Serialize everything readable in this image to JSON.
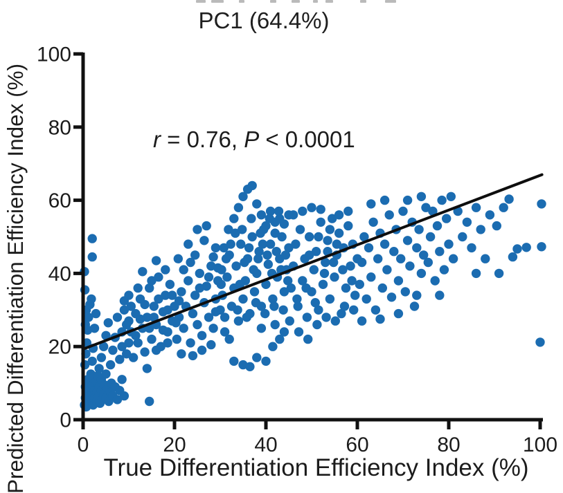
{
  "annotation": {
    "var1": "r",
    "mid": " = 0.76, ",
    "var2": "P",
    "end": " < 0.0001"
  },
  "chart_data": {
    "type": "scatter",
    "title": "PC1 (64.4%)",
    "xlabel": "True Differentiation Efficiency Index (%)",
    "ylabel": "Predicted Differentiation Efficiency Index (%)",
    "annotation_text": "r = 0.76, P < 0.0001",
    "xlim": [
      0,
      100
    ],
    "ylim": [
      0,
      100
    ],
    "xticks": [
      0,
      20,
      40,
      60,
      80,
      100
    ],
    "yticks": [
      0,
      20,
      40,
      60,
      80,
      100
    ],
    "grid": false,
    "legend": false,
    "point_color": "#1b6cb1",
    "axis_color": "#111111",
    "trend_line_color": "#0e0e0e",
    "trend_line": {
      "x1": 0,
      "y1": 19.3,
      "x2": 100.4,
      "y2": 67
    },
    "points": [
      [
        0.3,
        4
      ],
      [
        0.5,
        6
      ],
      [
        0.5,
        9
      ],
      [
        0.7,
        3.5
      ],
      [
        0.8,
        7.5
      ],
      [
        1,
        5
      ],
      [
        1,
        11
      ],
      [
        1.2,
        8.5
      ],
      [
        1.3,
        4.5
      ],
      [
        1.5,
        6.5
      ],
      [
        1.5,
        10
      ],
      [
        1.7,
        12.5
      ],
      [
        1.8,
        5.5
      ],
      [
        2,
        7
      ],
      [
        2,
        9.5
      ],
      [
        2.2,
        4
      ],
      [
        2.3,
        11.5
      ],
      [
        2.5,
        6
      ],
      [
        2.5,
        8
      ],
      [
        2.8,
        10.5
      ],
      [
        3,
        5
      ],
      [
        3,
        7.5
      ],
      [
        3.2,
        12
      ],
      [
        3.4,
        6.5
      ],
      [
        3.5,
        9
      ],
      [
        3.7,
        4.5
      ],
      [
        4,
        8
      ],
      [
        4,
        11
      ],
      [
        4.2,
        5.5
      ],
      [
        4.5,
        7
      ],
      [
        4.7,
        9.5
      ],
      [
        5,
        6
      ],
      [
        5,
        12.5
      ],
      [
        5.3,
        8.5
      ],
      [
        5.6,
        5
      ],
      [
        6,
        7.5
      ],
      [
        6.2,
        10
      ],
      [
        6.5,
        6.5
      ],
      [
        7,
        9
      ],
      [
        7.5,
        5.5
      ],
      [
        8,
        8
      ],
      [
        8.5,
        11
      ],
      [
        9,
        6.5
      ],
      [
        0.4,
        15
      ],
      [
        0.6,
        18
      ],
      [
        0.8,
        21
      ],
      [
        1,
        24.5
      ],
      [
        0.5,
        26
      ],
      [
        1.2,
        28
      ],
      [
        0.7,
        30
      ],
      [
        1.5,
        31.5
      ],
      [
        2,
        16
      ],
      [
        2.2,
        19.5
      ],
      [
        2.5,
        25
      ],
      [
        2.8,
        29
      ],
      [
        1.8,
        33
      ],
      [
        0.4,
        35.5
      ],
      [
        0.3,
        40.5
      ],
      [
        2,
        44.5
      ],
      [
        2,
        49.5
      ],
      [
        3.5,
        14
      ],
      [
        4,
        17
      ],
      [
        4.5,
        20
      ],
      [
        5,
        23
      ],
      [
        5.5,
        26.5
      ],
      [
        6,
        15
      ],
      [
        6.5,
        19
      ],
      [
        7,
        22.5
      ],
      [
        7.5,
        28
      ],
      [
        8,
        16.5
      ],
      [
        8.5,
        24
      ],
      [
        9,
        30
      ],
      [
        9.5,
        18
      ],
      [
        10,
        21
      ],
      [
        10,
        27
      ],
      [
        9,
        32.5
      ],
      [
        14.5,
        5
      ],
      [
        14,
        14
      ],
      [
        10.5,
        24
      ],
      [
        11,
        17
      ],
      [
        11.5,
        29
      ],
      [
        12,
        21
      ],
      [
        12.5,
        33
      ],
      [
        13,
        25
      ],
      [
        13.5,
        18.5
      ],
      [
        14,
        28
      ],
      [
        14.5,
        36
      ],
      [
        15,
        22
      ],
      [
        15.5,
        31
      ],
      [
        16,
        26
      ],
      [
        16.5,
        39
      ],
      [
        17,
        20
      ],
      [
        17.5,
        29.5
      ],
      [
        18,
        34
      ],
      [
        18.5,
        24
      ],
      [
        19,
        37
      ],
      [
        19.5,
        27
      ],
      [
        20,
        31
      ],
      [
        13,
        40.5
      ],
      [
        16,
        43.5
      ],
      [
        8.5,
        20
      ],
      [
        9.5,
        26
      ],
      [
        10.5,
        31
      ],
      [
        11.5,
        23
      ],
      [
        12.5,
        27.5
      ],
      [
        13.5,
        31.5
      ],
      [
        14.5,
        25
      ],
      [
        15.5,
        28
      ],
      [
        16.5,
        33
      ],
      [
        17.5,
        24.5
      ],
      [
        18.5,
        30
      ],
      [
        19.5,
        34
      ],
      [
        12,
        36
      ],
      [
        15,
        38
      ],
      [
        18,
        41
      ],
      [
        10,
        34
      ],
      [
        16,
        19
      ],
      [
        18.5,
        21
      ],
      [
        20.5,
        22
      ],
      [
        21,
        28
      ],
      [
        21.5,
        35
      ],
      [
        22,
        25
      ],
      [
        22.5,
        31
      ],
      [
        23,
        38
      ],
      [
        23.5,
        21
      ],
      [
        24,
        29
      ],
      [
        24.5,
        34
      ],
      [
        25,
        26
      ],
      [
        25.5,
        40
      ],
      [
        26,
        23
      ],
      [
        26.5,
        32
      ],
      [
        27,
        36.5
      ],
      [
        27.5,
        28
      ],
      [
        28,
        42
      ],
      [
        28.5,
        25
      ],
      [
        29,
        33
      ],
      [
        29.5,
        38
      ],
      [
        30,
        30
      ],
      [
        20.8,
        44
      ],
      [
        23,
        48
      ],
      [
        25,
        52
      ],
      [
        27,
        53
      ],
      [
        29,
        47
      ],
      [
        21.5,
        18
      ],
      [
        24,
        17.5
      ],
      [
        26,
        19
      ],
      [
        28,
        20.5
      ],
      [
        22,
        41
      ],
      [
        24.5,
        45
      ],
      [
        26.5,
        49
      ],
      [
        28.5,
        44.5
      ],
      [
        29.5,
        41.5
      ],
      [
        20.3,
        26.5
      ],
      [
        21,
        32.5
      ],
      [
        23.5,
        43
      ],
      [
        25.5,
        36
      ],
      [
        27.5,
        39
      ],
      [
        29,
        29.5
      ],
      [
        30.5,
        34
      ],
      [
        31,
        28
      ],
      [
        31.5,
        39
      ],
      [
        32,
        45
      ],
      [
        32.5,
        31
      ],
      [
        33,
        36
      ],
      [
        33.5,
        42
      ],
      [
        34,
        27
      ],
      [
        34.5,
        48
      ],
      [
        35,
        33
      ],
      [
        35.5,
        38
      ],
      [
        36,
        44
      ],
      [
        36.5,
        29
      ],
      [
        37,
        50
      ],
      [
        37.5,
        35
      ],
      [
        38,
        40
      ],
      [
        38.5,
        46
      ],
      [
        39,
        31
      ],
      [
        39.5,
        52
      ],
      [
        40,
        37
      ],
      [
        40.5,
        42.5
      ],
      [
        41,
        48
      ],
      [
        41.5,
        33
      ],
      [
        42,
        54
      ],
      [
        42.5,
        39
      ],
      [
        43,
        44
      ],
      [
        43.5,
        50
      ],
      [
        44,
        35
      ],
      [
        44.5,
        41
      ],
      [
        45,
        47
      ],
      [
        30.8,
        47
      ],
      [
        31.8,
        52
      ],
      [
        33,
        55
      ],
      [
        34,
        58
      ],
      [
        35,
        61
      ],
      [
        36,
        63
      ],
      [
        37,
        64
      ],
      [
        38,
        59
      ],
      [
        39,
        56
      ],
      [
        40,
        53
      ],
      [
        41,
        57
      ],
      [
        42,
        51
      ],
      [
        43,
        55
      ],
      [
        44,
        53.5
      ],
      [
        45,
        56
      ],
      [
        31,
        24
      ],
      [
        32,
        22
      ],
      [
        33,
        16
      ],
      [
        35,
        15
      ],
      [
        36.5,
        14.5
      ],
      [
        38,
        17
      ],
      [
        40,
        16
      ],
      [
        41.5,
        20
      ],
      [
        43,
        22
      ],
      [
        44,
        24
      ],
      [
        30.3,
        41
      ],
      [
        31.3,
        44
      ],
      [
        32.3,
        48
      ],
      [
        33.3,
        51
      ],
      [
        34.3,
        37
      ],
      [
        35.3,
        43
      ],
      [
        36.3,
        47
      ],
      [
        37.3,
        41
      ],
      [
        38.3,
        44
      ],
      [
        39.3,
        48
      ],
      [
        40.3,
        45
      ],
      [
        41.3,
        40
      ],
      [
        42.3,
        46
      ],
      [
        43.3,
        41
      ],
      [
        44.3,
        45
      ],
      [
        34.8,
        52
      ],
      [
        36.8,
        55
      ],
      [
        38.8,
        51
      ],
      [
        40.8,
        55
      ],
      [
        42.8,
        57
      ],
      [
        33.8,
        30
      ],
      [
        35.8,
        28
      ],
      [
        37.8,
        32
      ],
      [
        39.8,
        29
      ],
      [
        41.8,
        31
      ],
      [
        43.8,
        30
      ],
      [
        30.2,
        37
      ],
      [
        44.8,
        38
      ],
      [
        39,
        25
      ],
      [
        42,
        26
      ],
      [
        45.5,
        36
      ],
      [
        46,
        42
      ],
      [
        46.5,
        48
      ],
      [
        47,
        31
      ],
      [
        47.5,
        52
      ],
      [
        48,
        38
      ],
      [
        48.5,
        44
      ],
      [
        49,
        28
      ],
      [
        49.5,
        50
      ],
      [
        50,
        35
      ],
      [
        50.5,
        41
      ],
      [
        51,
        46
      ],
      [
        51.5,
        30
      ],
      [
        52,
        54
      ],
      [
        52.5,
        37
      ],
      [
        53,
        43
      ],
      [
        53.5,
        49
      ],
      [
        54,
        33
      ],
      [
        54.5,
        55
      ],
      [
        55,
        39
      ],
      [
        55.5,
        45
      ],
      [
        56,
        51
      ],
      [
        56.5,
        29
      ],
      [
        57,
        47
      ],
      [
        57.5,
        36
      ],
      [
        58,
        53
      ],
      [
        58.5,
        42
      ],
      [
        59,
        48
      ],
      [
        59.5,
        34
      ],
      [
        60,
        44
      ],
      [
        46,
        56
      ],
      [
        48,
        57
      ],
      [
        50,
        58
      ],
      [
        52,
        57.5
      ],
      [
        54,
        52
      ],
      [
        56,
        56
      ],
      [
        58,
        57
      ],
      [
        45.2,
        27
      ],
      [
        47.2,
        24
      ],
      [
        49.2,
        22
      ],
      [
        51.2,
        26
      ],
      [
        53.2,
        28
      ],
      [
        55.2,
        27
      ],
      [
        57.2,
        31
      ],
      [
        59.2,
        30
      ],
      [
        46.8,
        33
      ],
      [
        48.8,
        36
      ],
      [
        50.8,
        32
      ],
      [
        52.8,
        40
      ],
      [
        54.8,
        43
      ],
      [
        56.8,
        41
      ],
      [
        58.8,
        38
      ],
      [
        49.5,
        45
      ],
      [
        51.5,
        50
      ],
      [
        53.5,
        46
      ],
      [
        55.5,
        48
      ],
      [
        60.5,
        37
      ],
      [
        61,
        43
      ],
      [
        61.5,
        50
      ],
      [
        62,
        33
      ],
      [
        62.5,
        47
      ],
      [
        63,
        39
      ],
      [
        63.5,
        54
      ],
      [
        64,
        30
      ],
      [
        64.5,
        44
      ],
      [
        65,
        51
      ],
      [
        65.5,
        36
      ],
      [
        66,
        48
      ],
      [
        66.5,
        41
      ],
      [
        67,
        56
      ],
      [
        67.5,
        33.5
      ],
      [
        68,
        46
      ],
      [
        68.5,
        52
      ],
      [
        69,
        38
      ],
      [
        69.5,
        44
      ],
      [
        70,
        57
      ],
      [
        70.5,
        35
      ],
      [
        71,
        49
      ],
      [
        71.5,
        42
      ],
      [
        72,
        54
      ],
      [
        72.5,
        31
      ],
      [
        73,
        47
      ],
      [
        73.5,
        52
      ],
      [
        74,
        40
      ],
      [
        74.5,
        45
      ],
      [
        75,
        58
      ],
      [
        61,
        27
      ],
      [
        65,
        27.5
      ],
      [
        69,
        29
      ],
      [
        73,
        34
      ],
      [
        63,
        59
      ],
      [
        66,
        60
      ],
      [
        71,
        60
      ],
      [
        74,
        61
      ],
      [
        75.5,
        43
      ],
      [
        76,
        50
      ],
      [
        76.5,
        57
      ],
      [
        77,
        38
      ],
      [
        77.5,
        53
      ],
      [
        78,
        46
      ],
      [
        78.5,
        60
      ],
      [
        79,
        41
      ],
      [
        79.5,
        55
      ],
      [
        80,
        48
      ],
      [
        80.5,
        61
      ],
      [
        81,
        44
      ],
      [
        82,
        57
      ],
      [
        83,
        50
      ],
      [
        84,
        54
      ],
      [
        85,
        47
      ],
      [
        86,
        58
      ],
      [
        87,
        52
      ],
      [
        88,
        44
      ],
      [
        78,
        34
      ],
      [
        86,
        40
      ],
      [
        90.5,
        53
      ],
      [
        92,
        58
      ],
      [
        93.2,
        60.3
      ],
      [
        95,
        46.7
      ],
      [
        97,
        47.1
      ],
      [
        100.3,
        47.3
      ],
      [
        100.3,
        59
      ],
      [
        100,
        21.2
      ],
      [
        91,
        40
      ],
      [
        94,
        44.5
      ],
      [
        89,
        56
      ]
    ]
  }
}
